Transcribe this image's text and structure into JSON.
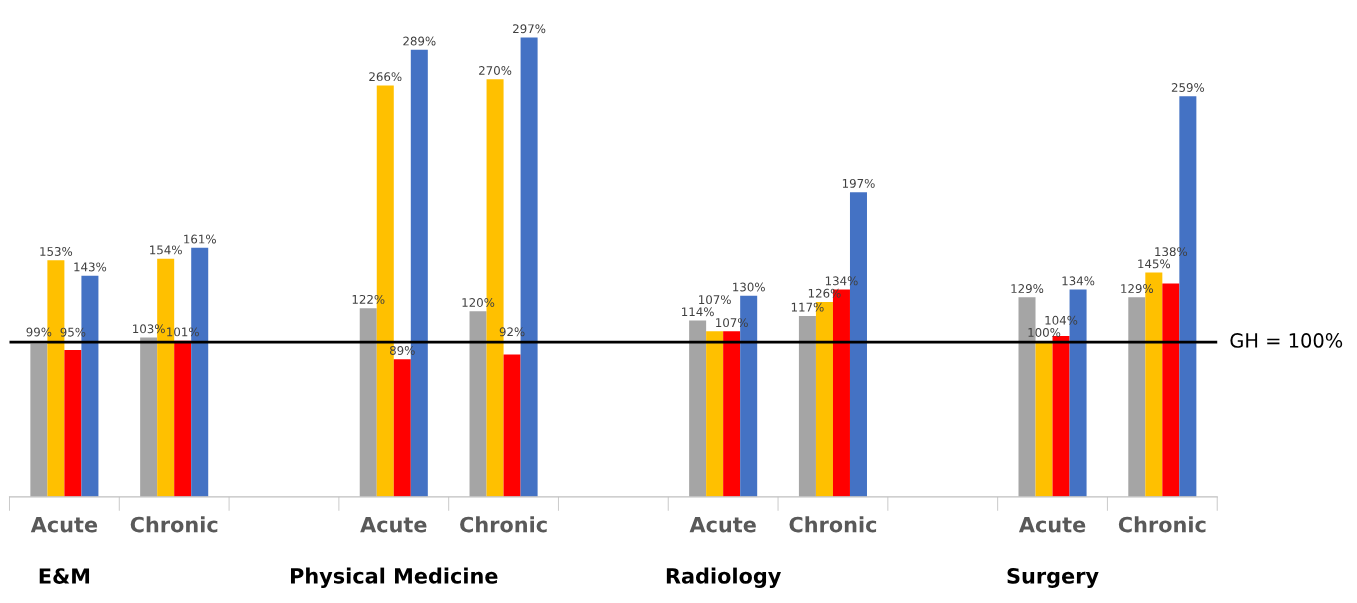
{
  "chart_data": {
    "type": "bar",
    "categories": [
      "Acute",
      "Chronic",
      null,
      "Acute",
      "Chronic",
      null,
      "Acute",
      "Chronic",
      null,
      "Acute",
      "Chronic"
    ],
    "series": [
      {
        "color": "#a5a5a5",
        "values": [
          99,
          103,
          null,
          122,
          120,
          null,
          114,
          117,
          null,
          129,
          129
        ],
        "value_labels": [
          "99%",
          "103%",
          null,
          "122%",
          "120%",
          null,
          "114%",
          "117%",
          null,
          "129%",
          "129%"
        ]
      },
      {
        "color": "#ffc000",
        "values": [
          153,
          154,
          null,
          266,
          270,
          null,
          107,
          126,
          null,
          100,
          145
        ],
        "value_labels": [
          "153%",
          "154%",
          null,
          "266%",
          "270%",
          null,
          "107%",
          "126%",
          null,
          "100%",
          "145%"
        ]
      },
      {
        "color": "#ff0000",
        "values": [
          95,
          101,
          null,
          89,
          92,
          null,
          107,
          134,
          null,
          104,
          138
        ],
        "value_labels": [
          "95%",
          "101%",
          null,
          "89%",
          "92%",
          null,
          "107%",
          "134%",
          null,
          "104%",
          "138%"
        ]
      },
      {
        "color": "#4472c4",
        "values": [
          143,
          161,
          null,
          289,
          297,
          null,
          130,
          197,
          null,
          134,
          259
        ],
        "value_labels": [
          "143%",
          "161%",
          null,
          "289%",
          "297%",
          null,
          "130%",
          "197%",
          null,
          "134%",
          "259%"
        ]
      }
    ],
    "grid": false,
    "legend": false,
    "ref_lines": [
      {
        "axis": "y",
        "value": 100,
        "label": "GH = 100%",
        "color": "#000000"
      }
    ],
    "annotations": [
      "E&M",
      "Physical Medicine",
      "Radiology",
      "Surgery"
    ]
  }
}
